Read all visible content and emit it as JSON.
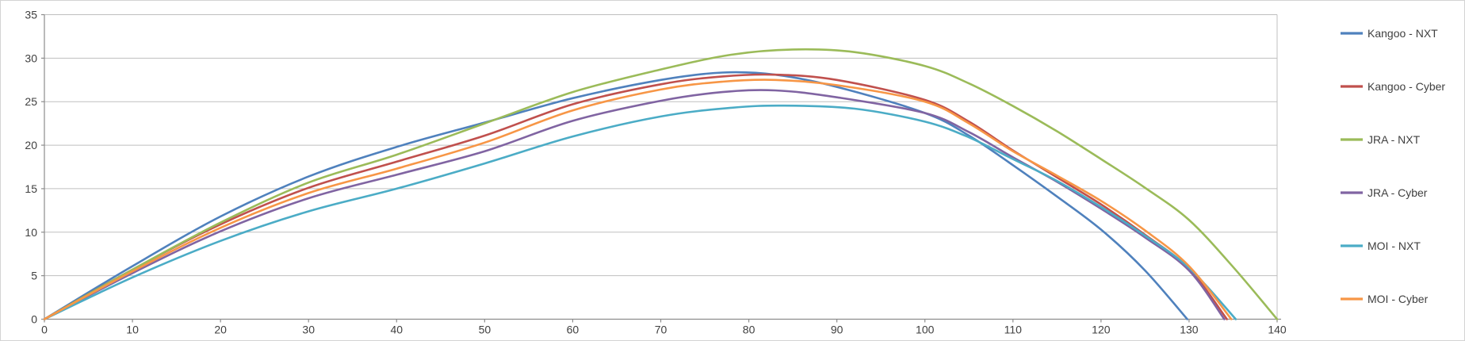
{
  "chart_data": {
    "type": "line",
    "title": "",
    "xlabel": "",
    "ylabel": "",
    "xlim": [
      0,
      140
    ],
    "ylim": [
      0,
      35
    ],
    "x_ticks": [
      0,
      10,
      20,
      30,
      40,
      50,
      60,
      70,
      80,
      90,
      100,
      110,
      120,
      130,
      140
    ],
    "y_ticks": [
      0,
      5,
      10,
      15,
      20,
      25,
      30,
      35
    ],
    "grid": "horizontal-major",
    "legend_position": "right",
    "gridline_color": "#bfbfbf",
    "axis_color": "#8c8c8c",
    "label_color": "#404040",
    "series": [
      {
        "name": "Kangoo - NXT",
        "color": "#4F81BD",
        "peak": {
          "x": 77,
          "y": 28.3
        },
        "range_end": 129.8,
        "points": [
          [
            0,
            0
          ],
          [
            10,
            6.1
          ],
          [
            20,
            11.8
          ],
          [
            30,
            16.4
          ],
          [
            40,
            19.8
          ],
          [
            50,
            22.6
          ],
          [
            60,
            25.4
          ],
          [
            70,
            27.5
          ],
          [
            77,
            28.35
          ],
          [
            83,
            28.1
          ],
          [
            90,
            26.7
          ],
          [
            100,
            23.7
          ],
          [
            105,
            21.1
          ],
          [
            110,
            17.7
          ],
          [
            115,
            14.1
          ],
          [
            120,
            10.3
          ],
          [
            125,
            5.6
          ],
          [
            129.8,
            0
          ]
        ]
      },
      {
        "name": "Kangoo - Cyber",
        "color": "#C0504D",
        "peak": {
          "x": 82,
          "y": 28.1
        },
        "range_end": 134.3,
        "points": [
          [
            0,
            0
          ],
          [
            10,
            5.7
          ],
          [
            20,
            10.9
          ],
          [
            30,
            15.1
          ],
          [
            40,
            18.1
          ],
          [
            50,
            21.1
          ],
          [
            60,
            24.7
          ],
          [
            70,
            27.0
          ],
          [
            77,
            27.9
          ],
          [
            83,
            28.1
          ],
          [
            90,
            27.5
          ],
          [
            100,
            25.2
          ],
          [
            105,
            22.7
          ],
          [
            110,
            19.4
          ],
          [
            115,
            16.3
          ],
          [
            120,
            13.2
          ],
          [
            125,
            9.7
          ],
          [
            130,
            5.8
          ],
          [
            134.3,
            0
          ]
        ]
      },
      {
        "name": "JRA - NXT",
        "color": "#9BBB59",
        "peak": {
          "x": 85,
          "y": 31.0
        },
        "range_end": 140,
        "points": [
          [
            0,
            0
          ],
          [
            10,
            5.7
          ],
          [
            20,
            11.1
          ],
          [
            30,
            15.7
          ],
          [
            40,
            18.9
          ],
          [
            50,
            22.5
          ],
          [
            60,
            26.1
          ],
          [
            70,
            28.7
          ],
          [
            78,
            30.4
          ],
          [
            85,
            31.0
          ],
          [
            92,
            30.7
          ],
          [
            100,
            29.1
          ],
          [
            105,
            27.1
          ],
          [
            110,
            24.5
          ],
          [
            115,
            21.6
          ],
          [
            120,
            18.4
          ],
          [
            125,
            15.1
          ],
          [
            130,
            11.4
          ],
          [
            135,
            6.0
          ],
          [
            140,
            0
          ]
        ]
      },
      {
        "name": "JRA - Cyber",
        "color": "#8064A2",
        "peak": {
          "x": 81,
          "y": 26.3
        },
        "range_end": 134.0,
        "points": [
          [
            0,
            0
          ],
          [
            10,
            5.3
          ],
          [
            20,
            10.1
          ],
          [
            30,
            13.9
          ],
          [
            40,
            16.6
          ],
          [
            50,
            19.3
          ],
          [
            60,
            22.8
          ],
          [
            70,
            25.1
          ],
          [
            77,
            26.1
          ],
          [
            83,
            26.3
          ],
          [
            90,
            25.5
          ],
          [
            100,
            23.7
          ],
          [
            105,
            21.5
          ],
          [
            110,
            18.6
          ],
          [
            115,
            15.8
          ],
          [
            120,
            12.7
          ],
          [
            125,
            9.4
          ],
          [
            130,
            5.6
          ],
          [
            134,
            0
          ]
        ]
      },
      {
        "name": "MOI - NXT",
        "color": "#4BACC6",
        "peak": {
          "x": 84,
          "y": 24.6
        },
        "range_end": 135.3,
        "points": [
          [
            0,
            0
          ],
          [
            10,
            4.8
          ],
          [
            20,
            9.0
          ],
          [
            30,
            12.4
          ],
          [
            40,
            15.0
          ],
          [
            50,
            17.9
          ],
          [
            60,
            21.0
          ],
          [
            70,
            23.3
          ],
          [
            78,
            24.3
          ],
          [
            84,
            24.55
          ],
          [
            92,
            24.2
          ],
          [
            100,
            22.7
          ],
          [
            105,
            20.9
          ],
          [
            110,
            18.4
          ],
          [
            115,
            15.9
          ],
          [
            120,
            12.9
          ],
          [
            125,
            9.6
          ],
          [
            130,
            5.9
          ],
          [
            135.3,
            0
          ]
        ]
      },
      {
        "name": "MOI - Cyber",
        "color": "#F79646",
        "peak": {
          "x": 81,
          "y": 27.5
        },
        "range_end": 134.8,
        "points": [
          [
            0,
            0
          ],
          [
            10,
            5.5
          ],
          [
            20,
            10.5
          ],
          [
            30,
            14.5
          ],
          [
            40,
            17.3
          ],
          [
            50,
            20.3
          ],
          [
            60,
            24.0
          ],
          [
            70,
            26.4
          ],
          [
            77,
            27.3
          ],
          [
            83,
            27.5
          ],
          [
            90,
            26.9
          ],
          [
            100,
            25.0
          ],
          [
            105,
            22.5
          ],
          [
            110,
            19.3
          ],
          [
            115,
            16.5
          ],
          [
            120,
            13.6
          ],
          [
            125,
            10.2
          ],
          [
            130,
            6.1
          ],
          [
            134.8,
            0
          ]
        ]
      }
    ]
  }
}
